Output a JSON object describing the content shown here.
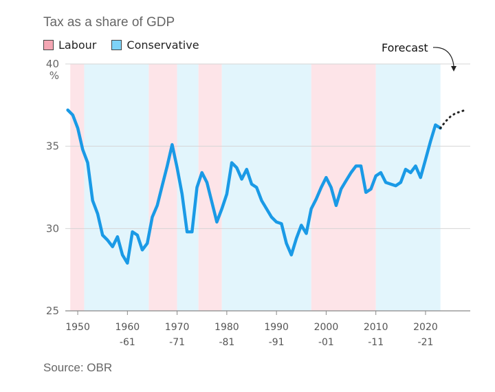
{
  "title": "Tax as a share of GDP",
  "source": "Source: OBR",
  "legend": [
    {
      "label": "Labour",
      "color": "#f4a6b3"
    },
    {
      "label": "Conservative",
      "color": "#7dd3f7"
    }
  ],
  "colors": {
    "line": "#1a9ae6",
    "labour_band": "#fde4e8",
    "conservative_band": "#e2f5fc",
    "grid": "#d5d5d5",
    "forecast": "#222222"
  },
  "chart_data": {
    "type": "line",
    "title": "Tax as a share of GDP",
    "ylabel": "%",
    "ylim": [
      25,
      40
    ],
    "xlim": [
      1947.5,
      2029
    ],
    "yticks": [
      {
        "value": 40,
        "label": "40"
      },
      {
        "value": 35,
        "label": "35"
      },
      {
        "value": 30,
        "label": "30"
      },
      {
        "value": 25,
        "label": "25"
      }
    ],
    "xticks": [
      {
        "value": 1950,
        "line1": "1950",
        "line2": ""
      },
      {
        "value": 1960,
        "line1": "1960",
        "line2": "-61"
      },
      {
        "value": 1970,
        "line1": "1970",
        "line2": "-71"
      },
      {
        "value": 1980,
        "line1": "1980",
        "line2": "-81"
      },
      {
        "value": 1990,
        "line1": "1990",
        "line2": "-91"
      },
      {
        "value": 2000,
        "line1": "2000",
        "line2": "-01"
      },
      {
        "value": 2010,
        "line1": "2010",
        "line2": "-11"
      },
      {
        "value": 2020,
        "line1": "2020",
        "line2": "-21"
      }
    ],
    "government_periods": [
      {
        "party": "Labour",
        "start": 1948.5,
        "end": 1951.3
      },
      {
        "party": "Conservative",
        "start": 1951.3,
        "end": 1964.3
      },
      {
        "party": "Labour",
        "start": 1964.3,
        "end": 1970.0
      },
      {
        "party": "Conservative",
        "start": 1970.0,
        "end": 1974.3
      },
      {
        "party": "Labour",
        "start": 1974.3,
        "end": 1979.0
      },
      {
        "party": "Conservative",
        "start": 1979.0,
        "end": 1997.0
      },
      {
        "party": "Labour",
        "start": 1997.0,
        "end": 2010.0
      },
      {
        "party": "Conservative",
        "start": 2010.0,
        "end": 2023.0
      }
    ],
    "series": [
      {
        "values": [
          [
            1948,
            37.2
          ],
          [
            1949,
            36.9
          ],
          [
            1950,
            36.1
          ],
          [
            1951,
            34.8
          ],
          [
            1952,
            34.0
          ],
          [
            1953,
            31.7
          ],
          [
            1954,
            30.9
          ],
          [
            1955,
            29.6
          ],
          [
            1956,
            29.3
          ],
          [
            1957,
            28.9
          ],
          [
            1958,
            29.5
          ],
          [
            1959,
            28.4
          ],
          [
            1960,
            27.9
          ],
          [
            1961,
            29.8
          ],
          [
            1962,
            29.6
          ],
          [
            1963,
            28.7
          ],
          [
            1964,
            29.1
          ],
          [
            1965,
            30.7
          ],
          [
            1966,
            31.4
          ],
          [
            1967,
            32.6
          ],
          [
            1968,
            33.8
          ],
          [
            1969,
            35.1
          ],
          [
            1970,
            33.7
          ],
          [
            1971,
            32.1
          ],
          [
            1972,
            29.8
          ],
          [
            1973,
            29.8
          ],
          [
            1974,
            32.5
          ],
          [
            1975,
            33.4
          ],
          [
            1976,
            32.8
          ],
          [
            1977,
            31.6
          ],
          [
            1978,
            30.4
          ],
          [
            1979,
            31.2
          ],
          [
            1980,
            32.1
          ],
          [
            1981,
            34.0
          ],
          [
            1982,
            33.7
          ],
          [
            1983,
            33.0
          ],
          [
            1984,
            33.6
          ],
          [
            1985,
            32.7
          ],
          [
            1986,
            32.5
          ],
          [
            1987,
            31.7
          ],
          [
            1988,
            31.2
          ],
          [
            1989,
            30.7
          ],
          [
            1990,
            30.4
          ],
          [
            1991,
            30.3
          ],
          [
            1992,
            29.1
          ],
          [
            1993,
            28.4
          ],
          [
            1994,
            29.4
          ],
          [
            1995,
            30.2
          ],
          [
            1996,
            29.7
          ],
          [
            1997,
            31.2
          ],
          [
            1998,
            31.8
          ],
          [
            1999,
            32.5
          ],
          [
            2000,
            33.1
          ],
          [
            2001,
            32.5
          ],
          [
            2002,
            31.4
          ],
          [
            2003,
            32.4
          ],
          [
            2004,
            32.9
          ],
          [
            2005,
            33.4
          ],
          [
            2006,
            33.8
          ],
          [
            2007,
            33.8
          ],
          [
            2008,
            32.2
          ],
          [
            2009,
            32.4
          ],
          [
            2010,
            33.2
          ],
          [
            2011,
            33.4
          ],
          [
            2012,
            32.8
          ],
          [
            2013,
            32.7
          ],
          [
            2014,
            32.6
          ],
          [
            2015,
            32.8
          ],
          [
            2016,
            33.6
          ],
          [
            2017,
            33.4
          ],
          [
            2018,
            33.8
          ],
          [
            2019,
            33.1
          ],
          [
            2020,
            34.2
          ],
          [
            2021,
            35.3
          ],
          [
            2022,
            36.3
          ],
          [
            2023,
            36.1
          ]
        ]
      },
      {
        "values": [
          [
            2023,
            36.1
          ],
          [
            2024,
            36.5
          ],
          [
            2025,
            36.8
          ],
          [
            2026,
            37.0
          ],
          [
            2027,
            37.1
          ],
          [
            2028,
            37.2
          ]
        ]
      }
    ],
    "annotation": {
      "text": "Forecast"
    }
  }
}
